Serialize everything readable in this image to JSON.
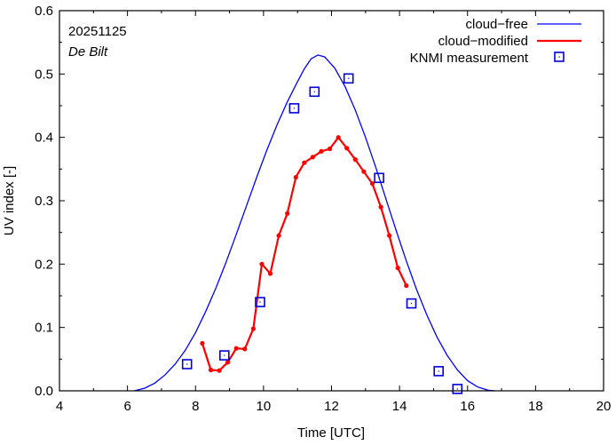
{
  "chart_data": {
    "type": "line",
    "annotations": [
      "20251125",
      "De Bilt"
    ],
    "xlabel": "Time  [UTC]",
    "ylabel": "UV index  [-]",
    "xlim": [
      4,
      20
    ],
    "ylim": [
      0.0,
      0.6
    ],
    "x_ticks": [
      4,
      6,
      8,
      10,
      12,
      14,
      16,
      18,
      20
    ],
    "x_tick_labels": [
      "4",
      "6",
      "8",
      "10",
      "12",
      "14",
      "16",
      "18",
      "20"
    ],
    "y_ticks": [
      0.0,
      0.1,
      0.2,
      0.3,
      0.4,
      0.5,
      0.6
    ],
    "y_tick_labels": [
      "0.0",
      "0.1",
      "0.2",
      "0.3",
      "0.4",
      "0.5",
      "0.6"
    ],
    "grid": false,
    "legend_position": "top-right",
    "series": [
      {
        "name": "cloud−free",
        "style": "line",
        "color": "#0000ff",
        "x": [
          6.2,
          6.5,
          6.8,
          7.1,
          7.4,
          7.7,
          8.0,
          8.3,
          8.6,
          8.9,
          9.2,
          9.5,
          9.8,
          10.1,
          10.4,
          10.7,
          11.0,
          11.2,
          11.4,
          11.6,
          11.8,
          12.1,
          12.4,
          12.7,
          13.0,
          13.3,
          13.6,
          13.9,
          14.2,
          14.5,
          14.8,
          15.1,
          15.4,
          15.7,
          16.0,
          16.3,
          16.6,
          16.8
        ],
        "values": [
          0.0,
          0.004,
          0.012,
          0.025,
          0.042,
          0.064,
          0.092,
          0.125,
          0.162,
          0.203,
          0.247,
          0.292,
          0.337,
          0.38,
          0.42,
          0.456,
          0.488,
          0.508,
          0.524,
          0.53,
          0.527,
          0.509,
          0.48,
          0.443,
          0.4,
          0.353,
          0.303,
          0.253,
          0.205,
          0.16,
          0.12,
          0.085,
          0.056,
          0.033,
          0.016,
          0.006,
          0.001,
          0.0
        ]
      },
      {
        "name": "cloud−modified",
        "style": "line+points",
        "color": "#ff0000",
        "x": [
          8.2,
          8.45,
          8.7,
          8.95,
          9.2,
          9.45,
          9.7,
          9.95,
          10.2,
          10.45,
          10.7,
          10.95,
          11.2,
          11.45,
          11.7,
          11.95,
          12.2,
          12.45,
          12.7,
          12.95,
          13.2,
          13.45,
          13.7,
          13.95,
          14.2
        ],
        "values": [
          0.075,
          0.033,
          0.032,
          0.045,
          0.067,
          0.066,
          0.098,
          0.2,
          0.185,
          0.245,
          0.28,
          0.337,
          0.36,
          0.369,
          0.378,
          0.382,
          0.4,
          0.383,
          0.365,
          0.346,
          0.327,
          0.29,
          0.245,
          0.194,
          0.166
        ]
      },
      {
        "name": "KNMI measurement",
        "style": "points",
        "color": "#0000dd",
        "x": [
          7.75,
          8.85,
          9.9,
          10.9,
          11.5,
          12.5,
          13.4,
          14.35,
          15.15,
          15.7
        ],
        "values": [
          0.042,
          0.056,
          0.14,
          0.446,
          0.472,
          0.493,
          0.336,
          0.138,
          0.031,
          0.003
        ]
      }
    ]
  }
}
